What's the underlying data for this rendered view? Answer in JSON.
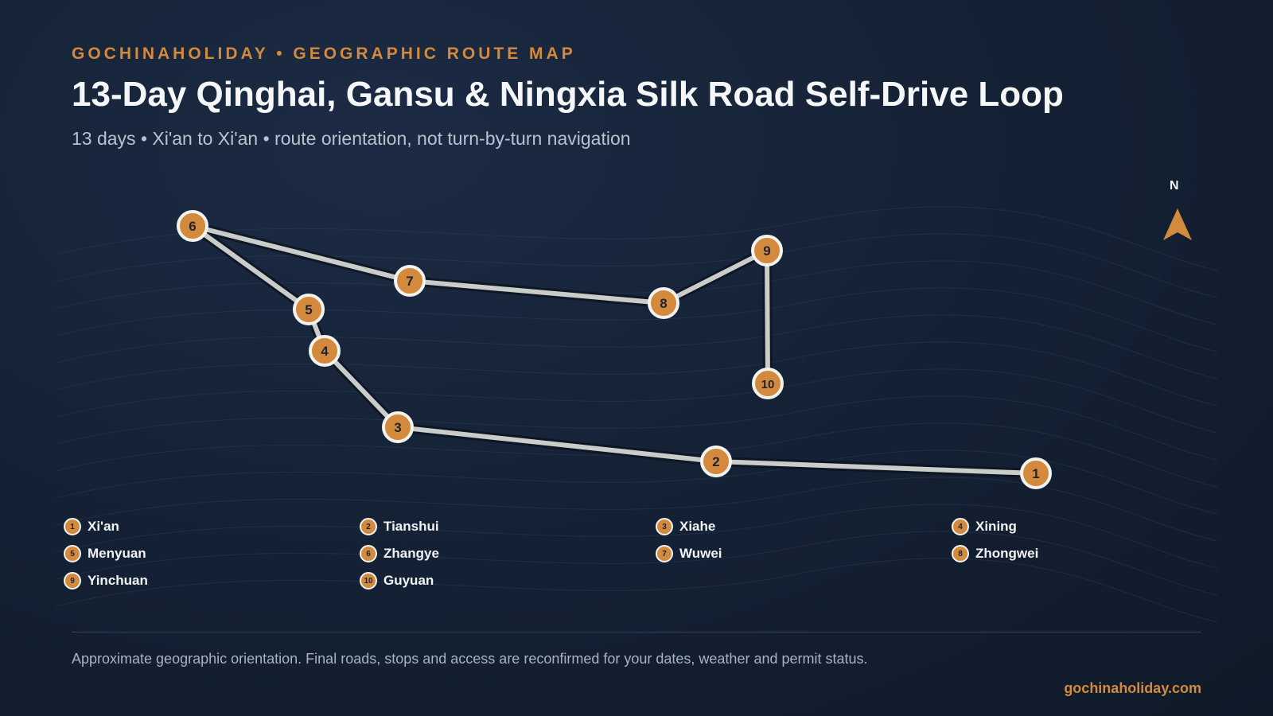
{
  "header": {
    "kicker": "GOCHINAHOLIDAY • GEOGRAPHIC ROUTE MAP",
    "title": "13-Day Qinghai, Gansu & Ningxia Silk Road Self-Drive Loop",
    "subtitle": "13 days • Xi'an to Xi'an • route orientation, not turn-by-turn navigation"
  },
  "compass": {
    "label": "N",
    "icon": "north-arrow-icon"
  },
  "colors": {
    "accent": "#d38a3d",
    "route": "#c9ccc8",
    "background": "#152236"
  },
  "stops": [
    {
      "number": "1",
      "name": "Xi'an"
    },
    {
      "number": "2",
      "name": "Tianshui"
    },
    {
      "number": "3",
      "name": "Xiahe"
    },
    {
      "number": "4",
      "name": "Xining"
    },
    {
      "number": "5",
      "name": "Menyuan"
    },
    {
      "number": "6",
      "name": "Zhangye"
    },
    {
      "number": "7",
      "name": "Wuwei"
    },
    {
      "number": "8",
      "name": "Zhongwei"
    },
    {
      "number": "9",
      "name": "Yinchuan"
    },
    {
      "number": "10",
      "name": "Guyuan"
    }
  ],
  "footer": {
    "note": "Approximate geographic orientation. Final roads, stops and access are reconfirmed for your dates, weather and permit status.",
    "website": "gochinaholiday.com"
  }
}
